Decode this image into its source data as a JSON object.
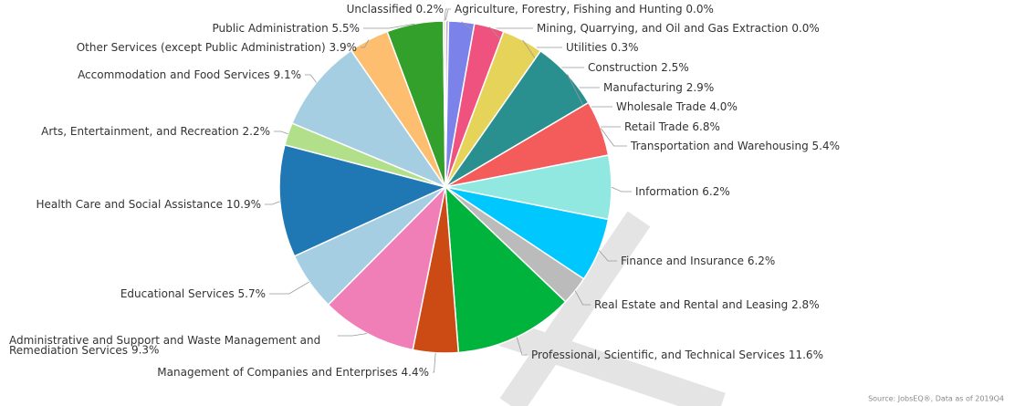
{
  "chart_data": {
    "type": "pie",
    "categories": [
      "Agriculture, Forestry, Fishing and Hunting",
      "Mining, Quarrying, and Oil and Gas Extraction",
      "Utilities",
      "Construction",
      "Manufacturing",
      "Wholesale Trade",
      "Retail Trade",
      "Transportation and Warehousing",
      "Information",
      "Finance and Insurance",
      "Real Estate and Rental and Leasing",
      "Professional, Scientific, and Technical Services",
      "Management of Companies and Enterprises",
      "Administrative and Support and Waste Management and Remediation Services",
      "Educational Services",
      "Health Care and Social Assistance",
      "Arts, Entertainment, and Recreation",
      "Accommodation and Food Services",
      "Other Services (except Public Administration)",
      "Public Administration",
      "Unclassified"
    ],
    "values": [
      0.0,
      0.0,
      0.3,
      2.5,
      2.9,
      4.0,
      6.8,
      5.4,
      6.2,
      6.2,
      2.8,
      11.6,
      4.4,
      9.3,
      5.7,
      10.9,
      2.2,
      9.1,
      3.9,
      5.5,
      0.2
    ],
    "value_labels": [
      "0.0%",
      "0.0%",
      "0.3%",
      "2.5%",
      "2.9%",
      "4.0%",
      "6.8%",
      "5.4%",
      "6.2%",
      "6.2%",
      "2.8%",
      "11.6%",
      "4.4%",
      "9.3%",
      "5.7%",
      "10.9%",
      "2.2%",
      "9.1%",
      "3.9%",
      "5.5%",
      "0.2%"
    ],
    "colors": [
      "#8c564b",
      "#c49c94",
      "#c5b0d5",
      "#7b83eb",
      "#f0527f",
      "#e6d35a",
      "#2a8f8f",
      "#f45b5b",
      "#91e8e1",
      "#00c8ff",
      "#bbbbbb",
      "#00b33c",
      "#cc4a14",
      "#f07fb7",
      "#a6cee3",
      "#1f78b4",
      "#b2df8a",
      "#a6cee3",
      "#fdbf6f",
      "#33a02c",
      "#d9c9a3"
    ],
    "source": "Source: JobsEQ®, Data as of 2019Q4"
  }
}
